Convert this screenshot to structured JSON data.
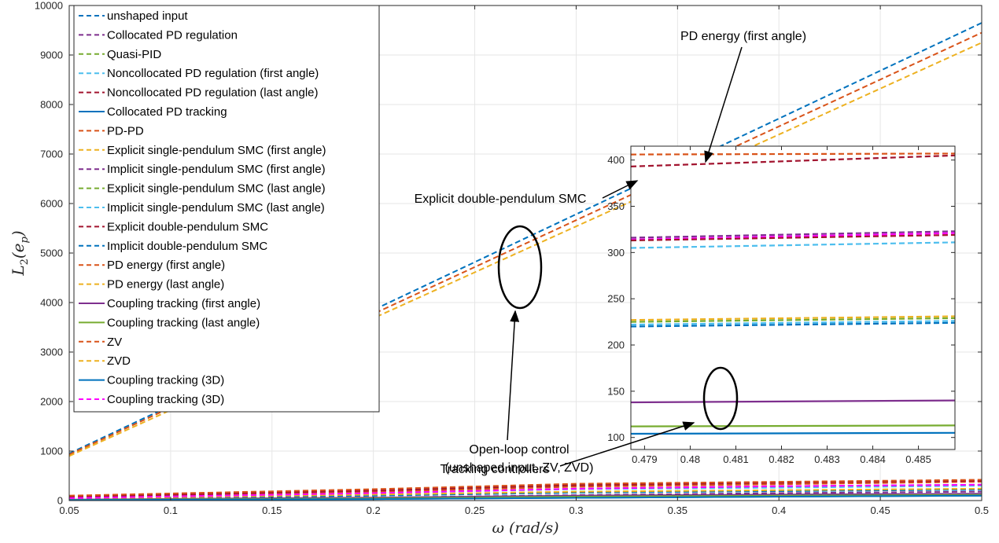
{
  "chart_data": [
    {
      "type": "line",
      "xlabel": "ω (rad/s)",
      "ylabel_main": "L",
      "ylabel_sub": "2",
      "ylabel_arg": "(e",
      "ylabel_arg_sub": "p",
      "ylabel_close": ")",
      "xlim": [
        0.05,
        0.5
      ],
      "ylim": [
        0,
        10000
      ],
      "grid": true,
      "legend_position": "top-left",
      "xticks": [
        "0.05",
        "0.1",
        "0.15",
        "0.2",
        "0.25",
        "0.3",
        "0.35",
        "0.4",
        "0.45",
        "0.5"
      ],
      "yticks": [
        "0",
        "1000",
        "2000",
        "3000",
        "4000",
        "5000",
        "6000",
        "7000",
        "8000",
        "9000",
        "10000"
      ],
      "series": [
        {
          "name": "unshaped input",
          "color": "#0072bd",
          "dash": true,
          "x": [
            0.05,
            0.5
          ],
          "y": [
            950,
            9650
          ]
        },
        {
          "name": "Collocated PD regulation",
          "color": "#7e2f8e",
          "dash": true,
          "x": [
            0.05,
            0.2,
            0.3,
            0.4,
            0.5
          ],
          "y": [
            20,
            60,
            110,
            150,
            180
          ]
        },
        {
          "name": "Quasi-PID",
          "color": "#77ac30",
          "dash": true,
          "x": [
            0.05,
            0.2,
            0.3,
            0.4,
            0.5
          ],
          "y": [
            10,
            40,
            70,
            100,
            120
          ]
        },
        {
          "name": "Noncollocated PD regulation (first angle)",
          "color": "#4dbeee",
          "dash": true,
          "x": [
            0.05,
            0.2,
            0.3,
            0.4,
            0.5
          ],
          "y": [
            30,
            150,
            230,
            260,
            300
          ]
        },
        {
          "name": "Noncollocated PD regulation (last angle)",
          "color": "#a2142f",
          "dash": true,
          "x": [
            0.05,
            0.2,
            0.3,
            0.4,
            0.5
          ],
          "y": [
            90,
            200,
            300,
            350,
            400
          ]
        },
        {
          "name": "Collocated PD tracking",
          "color": "#0072bd",
          "dash": false,
          "x": [
            0.05,
            0.2,
            0.3,
            0.4,
            0.5
          ],
          "y": [
            10,
            30,
            55,
            80,
            100
          ]
        },
        {
          "name": "PD-PD",
          "color": "#d95319",
          "dash": true,
          "x": [
            0.05,
            0.2,
            0.3,
            0.4,
            0.5
          ],
          "y": [
            60,
            180,
            280,
            330,
            380
          ]
        },
        {
          "name": "Explicit single-pendulum SMC (first angle)",
          "color": "#edb120",
          "dash": true,
          "x": [
            0.05,
            0.2,
            0.3,
            0.4,
            0.5
          ],
          "y": [
            40,
            120,
            180,
            210,
            240
          ]
        },
        {
          "name": "Implicit single-pendulum SMC (first angle)",
          "color": "#7e2f8e",
          "dash": true,
          "x": [
            0.05,
            0.2,
            0.3,
            0.4,
            0.5
          ],
          "y": [
            50,
            150,
            240,
            290,
            320
          ]
        },
        {
          "name": "Explicit single-pendulum SMC (last angle)",
          "color": "#77ac30",
          "dash": true,
          "x": [
            0.05,
            0.2,
            0.3,
            0.4,
            0.5
          ],
          "y": [
            40,
            110,
            170,
            200,
            230
          ]
        },
        {
          "name": "Implicit single-pendulum SMC (last angle)",
          "color": "#4dbeee",
          "dash": true,
          "x": [
            0.05,
            0.2,
            0.3,
            0.4,
            0.5
          ],
          "y": [
            30,
            100,
            160,
            190,
            220
          ]
        },
        {
          "name": "Explicit double-pendulum SMC",
          "color": "#a2142f",
          "dash": true,
          "x": [
            0.05,
            0.2,
            0.3,
            0.4,
            0.5
          ],
          "y": [
            80,
            200,
            320,
            370,
            400
          ]
        },
        {
          "name": "Implicit double-pendulum SMC",
          "color": "#0072bd",
          "dash": true,
          "x": [
            0.05,
            0.2,
            0.3,
            0.4,
            0.5
          ],
          "y": [
            30,
            100,
            160,
            190,
            220
          ]
        },
        {
          "name": "PD energy (first angle)",
          "color": "#d95319",
          "dash": true,
          "x": [
            0.05,
            0.2,
            0.3,
            0.4,
            0.5
          ],
          "y": [
            100,
            230,
            340,
            380,
            420
          ]
        },
        {
          "name": "PD energy (last angle)",
          "color": "#edb120",
          "dash": true,
          "x": [
            0.05,
            0.2,
            0.3,
            0.4,
            0.5
          ],
          "y": [
            40,
            120,
            180,
            210,
            240
          ]
        },
        {
          "name": "Coupling tracking (first angle)",
          "color": "#7e2f8e",
          "dash": false,
          "x": [
            0.05,
            0.2,
            0.3,
            0.4,
            0.5
          ],
          "y": [
            20,
            60,
            100,
            120,
            140
          ]
        },
        {
          "name": "Coupling tracking (last angle)",
          "color": "#77ac30",
          "dash": false,
          "x": [
            0.05,
            0.2,
            0.3,
            0.4,
            0.5
          ],
          "y": [
            15,
            45,
            80,
            100,
            115
          ]
        },
        {
          "name": "ZV",
          "color": "#d95319",
          "dash": true,
          "x": [
            0.05,
            0.5
          ],
          "y": [
            930,
            9450
          ]
        },
        {
          "name": "ZVD",
          "color": "#edb120",
          "dash": true,
          "x": [
            0.05,
            0.5
          ],
          "y": [
            900,
            9250
          ]
        },
        {
          "name": "Coupling tracking (3D)",
          "color": "#0072bd",
          "dash": false,
          "x": [
            0.05,
            0.2,
            0.3,
            0.4,
            0.5
          ],
          "y": [
            10,
            30,
            55,
            80,
            100
          ]
        },
        {
          "name": "Coupling tracking (3D)",
          "color": "#ff00ff",
          "dash": true,
          "x": [
            0.05,
            0.2,
            0.3,
            0.4,
            0.5
          ],
          "y": [
            50,
            150,
            240,
            290,
            320
          ]
        }
      ]
    },
    {
      "type": "line",
      "xlim": [
        0.4787,
        0.4858
      ],
      "ylim": [
        87,
        415
      ],
      "grid": false,
      "xticks": [
        "0.479",
        "0.48",
        "0.481",
        "0.482",
        "0.483",
        "0.484",
        "0.485"
      ],
      "yticks": [
        "100",
        "150",
        "200",
        "250",
        "300",
        "350",
        "400"
      ],
      "series": [
        {
          "color": "#d95319",
          "dash": true,
          "x": [
            0.4787,
            0.4858
          ],
          "y": [
            406,
            407
          ]
        },
        {
          "color": "#a2142f",
          "dash": true,
          "x": [
            0.4787,
            0.4858
          ],
          "y": [
            393,
            405
          ]
        },
        {
          "color": "#7e2f8e",
          "dash": true,
          "x": [
            0.4787,
            0.4858
          ],
          "y": [
            316,
            323
          ]
        },
        {
          "color": "#ff00ff",
          "dash": true,
          "x": [
            0.4787,
            0.4858
          ],
          "y": [
            314,
            321
          ]
        },
        {
          "color": "#a2142f",
          "dash": true,
          "x": [
            0.4787,
            0.4858
          ],
          "y": [
            313,
            319
          ]
        },
        {
          "color": "#4dbeee",
          "dash": true,
          "x": [
            0.4787,
            0.4858
          ],
          "y": [
            305,
            311
          ]
        },
        {
          "color": "#edb120",
          "dash": true,
          "x": [
            0.4787,
            0.4858
          ],
          "y": [
            227,
            231
          ]
        },
        {
          "color": "#77ac30",
          "dash": true,
          "x": [
            0.4787,
            0.4858
          ],
          "y": [
            225,
            229
          ]
        },
        {
          "color": "#4dbeee",
          "dash": true,
          "x": [
            0.4787,
            0.4858
          ],
          "y": [
            222,
            226
          ]
        },
        {
          "color": "#0072bd",
          "dash": true,
          "x": [
            0.4787,
            0.4858
          ],
          "y": [
            220,
            224
          ]
        },
        {
          "color": "#7e2f8e",
          "dash": false,
          "x": [
            0.4787,
            0.4858
          ],
          "y": [
            138,
            140
          ]
        },
        {
          "color": "#77ac30",
          "dash": false,
          "x": [
            0.4787,
            0.4858
          ],
          "y": [
            112,
            113
          ]
        },
        {
          "color": "#0072bd",
          "dash": false,
          "x": [
            0.4787,
            0.4858
          ],
          "y": [
            104,
            105
          ]
        }
      ]
    }
  ],
  "annotations": {
    "pd_energy": "PD energy (first angle)",
    "explicit_double": "Explicit double-pendulum SMC",
    "open_loop_line1": "Open-loop control",
    "open_loop_line2": "(unshaped input, ZV, ZVD)",
    "tracking": "Tracking controllers"
  }
}
